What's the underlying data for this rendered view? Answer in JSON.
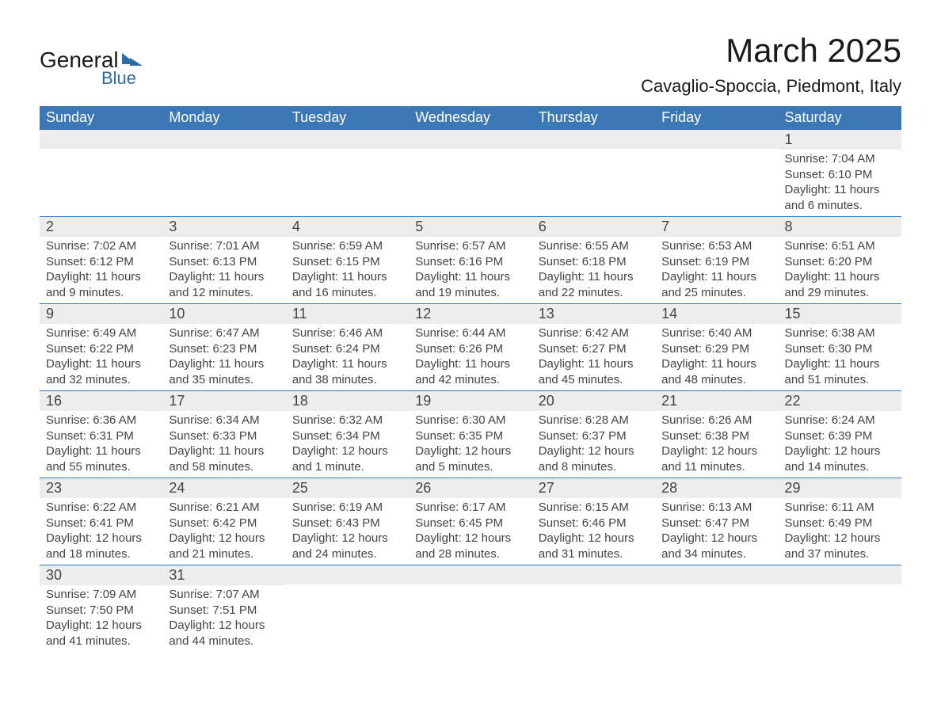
{
  "logo": {
    "line1": "General",
    "line2": "Blue"
  },
  "title": "March 2025",
  "location": "Cavaglio-Spoccia, Piedmont, Italy",
  "colors": {
    "header_bg": "#3b78b5",
    "header_text": "#ffffff",
    "daynum_bg": "#ededed",
    "text": "#444444",
    "rule": "#3b78b5",
    "logo_accent": "#2d6ca2"
  },
  "day_headers": [
    "Sunday",
    "Monday",
    "Tuesday",
    "Wednesday",
    "Thursday",
    "Friday",
    "Saturday"
  ],
  "weeks": [
    [
      null,
      null,
      null,
      null,
      null,
      null,
      {
        "n": "1",
        "sr": "Sunrise: 7:04 AM",
        "ss": "Sunset: 6:10 PM",
        "d1": "Daylight: 11 hours",
        "d2": "and 6 minutes."
      }
    ],
    [
      {
        "n": "2",
        "sr": "Sunrise: 7:02 AM",
        "ss": "Sunset: 6:12 PM",
        "d1": "Daylight: 11 hours",
        "d2": "and 9 minutes."
      },
      {
        "n": "3",
        "sr": "Sunrise: 7:01 AM",
        "ss": "Sunset: 6:13 PM",
        "d1": "Daylight: 11 hours",
        "d2": "and 12 minutes."
      },
      {
        "n": "4",
        "sr": "Sunrise: 6:59 AM",
        "ss": "Sunset: 6:15 PM",
        "d1": "Daylight: 11 hours",
        "d2": "and 16 minutes."
      },
      {
        "n": "5",
        "sr": "Sunrise: 6:57 AM",
        "ss": "Sunset: 6:16 PM",
        "d1": "Daylight: 11 hours",
        "d2": "and 19 minutes."
      },
      {
        "n": "6",
        "sr": "Sunrise: 6:55 AM",
        "ss": "Sunset: 6:18 PM",
        "d1": "Daylight: 11 hours",
        "d2": "and 22 minutes."
      },
      {
        "n": "7",
        "sr": "Sunrise: 6:53 AM",
        "ss": "Sunset: 6:19 PM",
        "d1": "Daylight: 11 hours",
        "d2": "and 25 minutes."
      },
      {
        "n": "8",
        "sr": "Sunrise: 6:51 AM",
        "ss": "Sunset: 6:20 PM",
        "d1": "Daylight: 11 hours",
        "d2": "and 29 minutes."
      }
    ],
    [
      {
        "n": "9",
        "sr": "Sunrise: 6:49 AM",
        "ss": "Sunset: 6:22 PM",
        "d1": "Daylight: 11 hours",
        "d2": "and 32 minutes."
      },
      {
        "n": "10",
        "sr": "Sunrise: 6:47 AM",
        "ss": "Sunset: 6:23 PM",
        "d1": "Daylight: 11 hours",
        "d2": "and 35 minutes."
      },
      {
        "n": "11",
        "sr": "Sunrise: 6:46 AM",
        "ss": "Sunset: 6:24 PM",
        "d1": "Daylight: 11 hours",
        "d2": "and 38 minutes."
      },
      {
        "n": "12",
        "sr": "Sunrise: 6:44 AM",
        "ss": "Sunset: 6:26 PM",
        "d1": "Daylight: 11 hours",
        "d2": "and 42 minutes."
      },
      {
        "n": "13",
        "sr": "Sunrise: 6:42 AM",
        "ss": "Sunset: 6:27 PM",
        "d1": "Daylight: 11 hours",
        "d2": "and 45 minutes."
      },
      {
        "n": "14",
        "sr": "Sunrise: 6:40 AM",
        "ss": "Sunset: 6:29 PM",
        "d1": "Daylight: 11 hours",
        "d2": "and 48 minutes."
      },
      {
        "n": "15",
        "sr": "Sunrise: 6:38 AM",
        "ss": "Sunset: 6:30 PM",
        "d1": "Daylight: 11 hours",
        "d2": "and 51 minutes."
      }
    ],
    [
      {
        "n": "16",
        "sr": "Sunrise: 6:36 AM",
        "ss": "Sunset: 6:31 PM",
        "d1": "Daylight: 11 hours",
        "d2": "and 55 minutes."
      },
      {
        "n": "17",
        "sr": "Sunrise: 6:34 AM",
        "ss": "Sunset: 6:33 PM",
        "d1": "Daylight: 11 hours",
        "d2": "and 58 minutes."
      },
      {
        "n": "18",
        "sr": "Sunrise: 6:32 AM",
        "ss": "Sunset: 6:34 PM",
        "d1": "Daylight: 12 hours",
        "d2": "and 1 minute."
      },
      {
        "n": "19",
        "sr": "Sunrise: 6:30 AM",
        "ss": "Sunset: 6:35 PM",
        "d1": "Daylight: 12 hours",
        "d2": "and 5 minutes."
      },
      {
        "n": "20",
        "sr": "Sunrise: 6:28 AM",
        "ss": "Sunset: 6:37 PM",
        "d1": "Daylight: 12 hours",
        "d2": "and 8 minutes."
      },
      {
        "n": "21",
        "sr": "Sunrise: 6:26 AM",
        "ss": "Sunset: 6:38 PM",
        "d1": "Daylight: 12 hours",
        "d2": "and 11 minutes."
      },
      {
        "n": "22",
        "sr": "Sunrise: 6:24 AM",
        "ss": "Sunset: 6:39 PM",
        "d1": "Daylight: 12 hours",
        "d2": "and 14 minutes."
      }
    ],
    [
      {
        "n": "23",
        "sr": "Sunrise: 6:22 AM",
        "ss": "Sunset: 6:41 PM",
        "d1": "Daylight: 12 hours",
        "d2": "and 18 minutes."
      },
      {
        "n": "24",
        "sr": "Sunrise: 6:21 AM",
        "ss": "Sunset: 6:42 PM",
        "d1": "Daylight: 12 hours",
        "d2": "and 21 minutes."
      },
      {
        "n": "25",
        "sr": "Sunrise: 6:19 AM",
        "ss": "Sunset: 6:43 PM",
        "d1": "Daylight: 12 hours",
        "d2": "and 24 minutes."
      },
      {
        "n": "26",
        "sr": "Sunrise: 6:17 AM",
        "ss": "Sunset: 6:45 PM",
        "d1": "Daylight: 12 hours",
        "d2": "and 28 minutes."
      },
      {
        "n": "27",
        "sr": "Sunrise: 6:15 AM",
        "ss": "Sunset: 6:46 PM",
        "d1": "Daylight: 12 hours",
        "d2": "and 31 minutes."
      },
      {
        "n": "28",
        "sr": "Sunrise: 6:13 AM",
        "ss": "Sunset: 6:47 PM",
        "d1": "Daylight: 12 hours",
        "d2": "and 34 minutes."
      },
      {
        "n": "29",
        "sr": "Sunrise: 6:11 AM",
        "ss": "Sunset: 6:49 PM",
        "d1": "Daylight: 12 hours",
        "d2": "and 37 minutes."
      }
    ],
    [
      {
        "n": "30",
        "sr": "Sunrise: 7:09 AM",
        "ss": "Sunset: 7:50 PM",
        "d1": "Daylight: 12 hours",
        "d2": "and 41 minutes."
      },
      {
        "n": "31",
        "sr": "Sunrise: 7:07 AM",
        "ss": "Sunset: 7:51 PM",
        "d1": "Daylight: 12 hours",
        "d2": "and 44 minutes."
      },
      null,
      null,
      null,
      null,
      null
    ]
  ]
}
